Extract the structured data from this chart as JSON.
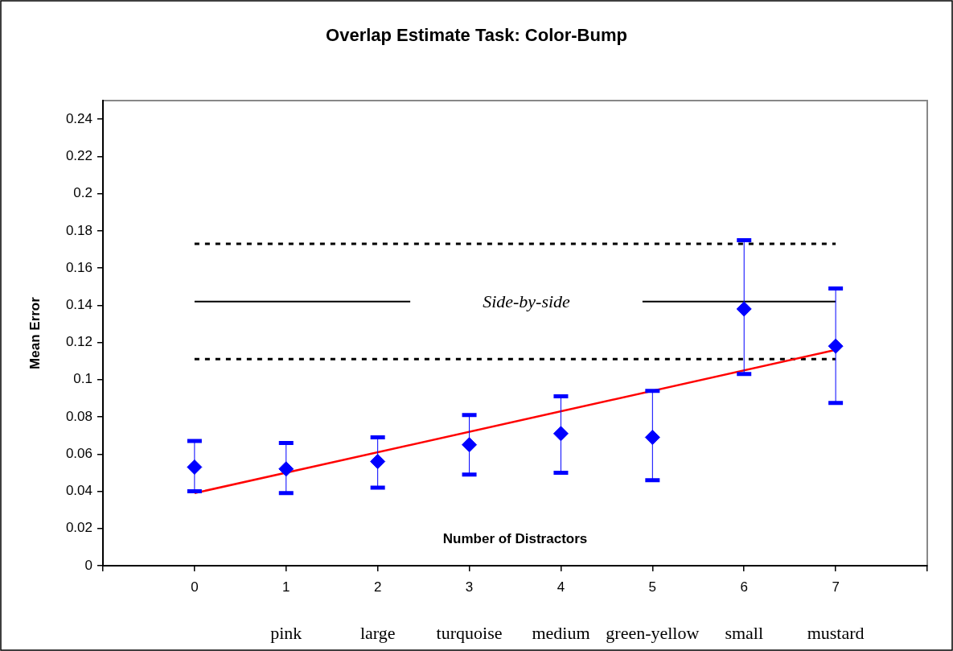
{
  "chart_data": {
    "type": "scatter",
    "title": "Overlap Estimate Task: Color-Bump",
    "xlabel": "Number of Distractors",
    "ylabel": "Mean Error",
    "xlim": [
      -1,
      8
    ],
    "xticks": [
      {
        "value": -1,
        "label": null
      },
      0,
      1,
      2,
      3,
      4,
      5,
      6,
      7,
      {
        "value": 8,
        "label": null
      }
    ],
    "annotations": [
      "pink",
      "large",
      "turquoise",
      "medium",
      "green-yellow",
      "small",
      "mustard"
    ],
    "ylim": [
      0,
      0.25
    ],
    "yticks": [
      0,
      0.02,
      0.04,
      0.06,
      0.08,
      0.1,
      0.12,
      0.14,
      0.16,
      0.18,
      0.2,
      0.22,
      0.24
    ],
    "series": [
      {
        "color": "#0000ff",
        "marker": "diamond",
        "x": [
          0,
          1,
          2,
          3,
          4,
          5,
          6,
          7
        ],
        "values": [
          0.053,
          0.052,
          0.056,
          0.065,
          0.071,
          0.069,
          0.138,
          0.118
        ],
        "errors": [
          [
            0.04,
            0.067
          ],
          [
            0.039,
            0.066
          ],
          [
            0.042,
            0.069
          ],
          [
            0.049,
            0.081
          ],
          [
            0.05,
            0.091
          ],
          [
            0.046,
            0.094
          ],
          [
            0.103,
            0.175
          ],
          [
            0.0875,
            0.149
          ]
        ]
      },
      {
        "type": "line",
        "color": "#ff0000",
        "marker": "none",
        "x": [
          0,
          7
        ],
        "values": [
          0.039,
          0.116
        ]
      }
    ],
    "ref_lines": [
      {
        "axis": "y",
        "value": 0.173,
        "line_style": "dotted",
        "color": "#000000"
      },
      {
        "axis": "y",
        "value": 0.142,
        "label": "Side-by-side",
        "line_style": "solid",
        "color": "#000000"
      },
      {
        "axis": "y",
        "value": 0.111,
        "line_style": "dotted",
        "color": "#000000"
      }
    ],
    "grid": false,
    "legend": false
  }
}
